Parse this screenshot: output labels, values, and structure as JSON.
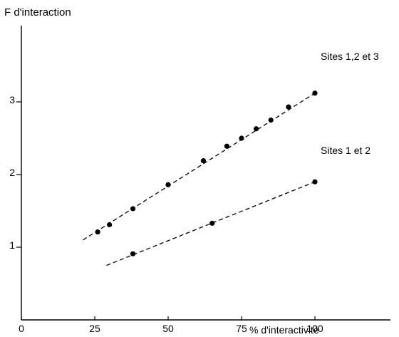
{
  "chart_data": {
    "type": "scatter",
    "ylabel": "F d'interaction",
    "xlabel": "% d'interactivité",
    "xlim": [
      0,
      125
    ],
    "ylim": [
      0,
      4
    ],
    "x_ticks": [
      0,
      25,
      50,
      75,
      100
    ],
    "y_ticks": [
      1,
      2,
      3
    ],
    "x_tick_labels": [
      "0",
      "25",
      "50",
      "75",
      "100"
    ],
    "y_tick_labels": [
      "1",
      "2",
      "3"
    ],
    "grid": false,
    "series": [
      {
        "name": "Sites 1,2 et 3",
        "line": {
          "x": [
            21,
            100
          ],
          "y": [
            1.1,
            3.12
          ],
          "style": "dashed"
        },
        "points": [
          {
            "x": 26,
            "y": 1.21
          },
          {
            "x": 30,
            "y": 1.31
          },
          {
            "x": 38,
            "y": 1.53
          },
          {
            "x": 50,
            "y": 1.86
          },
          {
            "x": 62,
            "y": 2.19
          },
          {
            "x": 70,
            "y": 2.39
          },
          {
            "x": 75,
            "y": 2.5
          },
          {
            "x": 80,
            "y": 2.63
          },
          {
            "x": 85,
            "y": 2.75
          },
          {
            "x": 91,
            "y": 2.93
          },
          {
            "x": 100,
            "y": 3.12
          }
        ]
      },
      {
        "name": "Sites 1 et 2",
        "line": {
          "x": [
            29,
            100
          ],
          "y": [
            0.75,
            1.9
          ],
          "style": "dashed"
        },
        "points": [
          {
            "x": 38,
            "y": 0.91
          },
          {
            "x": 65,
            "y": 1.33
          },
          {
            "x": 100,
            "y": 1.9
          }
        ]
      }
    ]
  }
}
